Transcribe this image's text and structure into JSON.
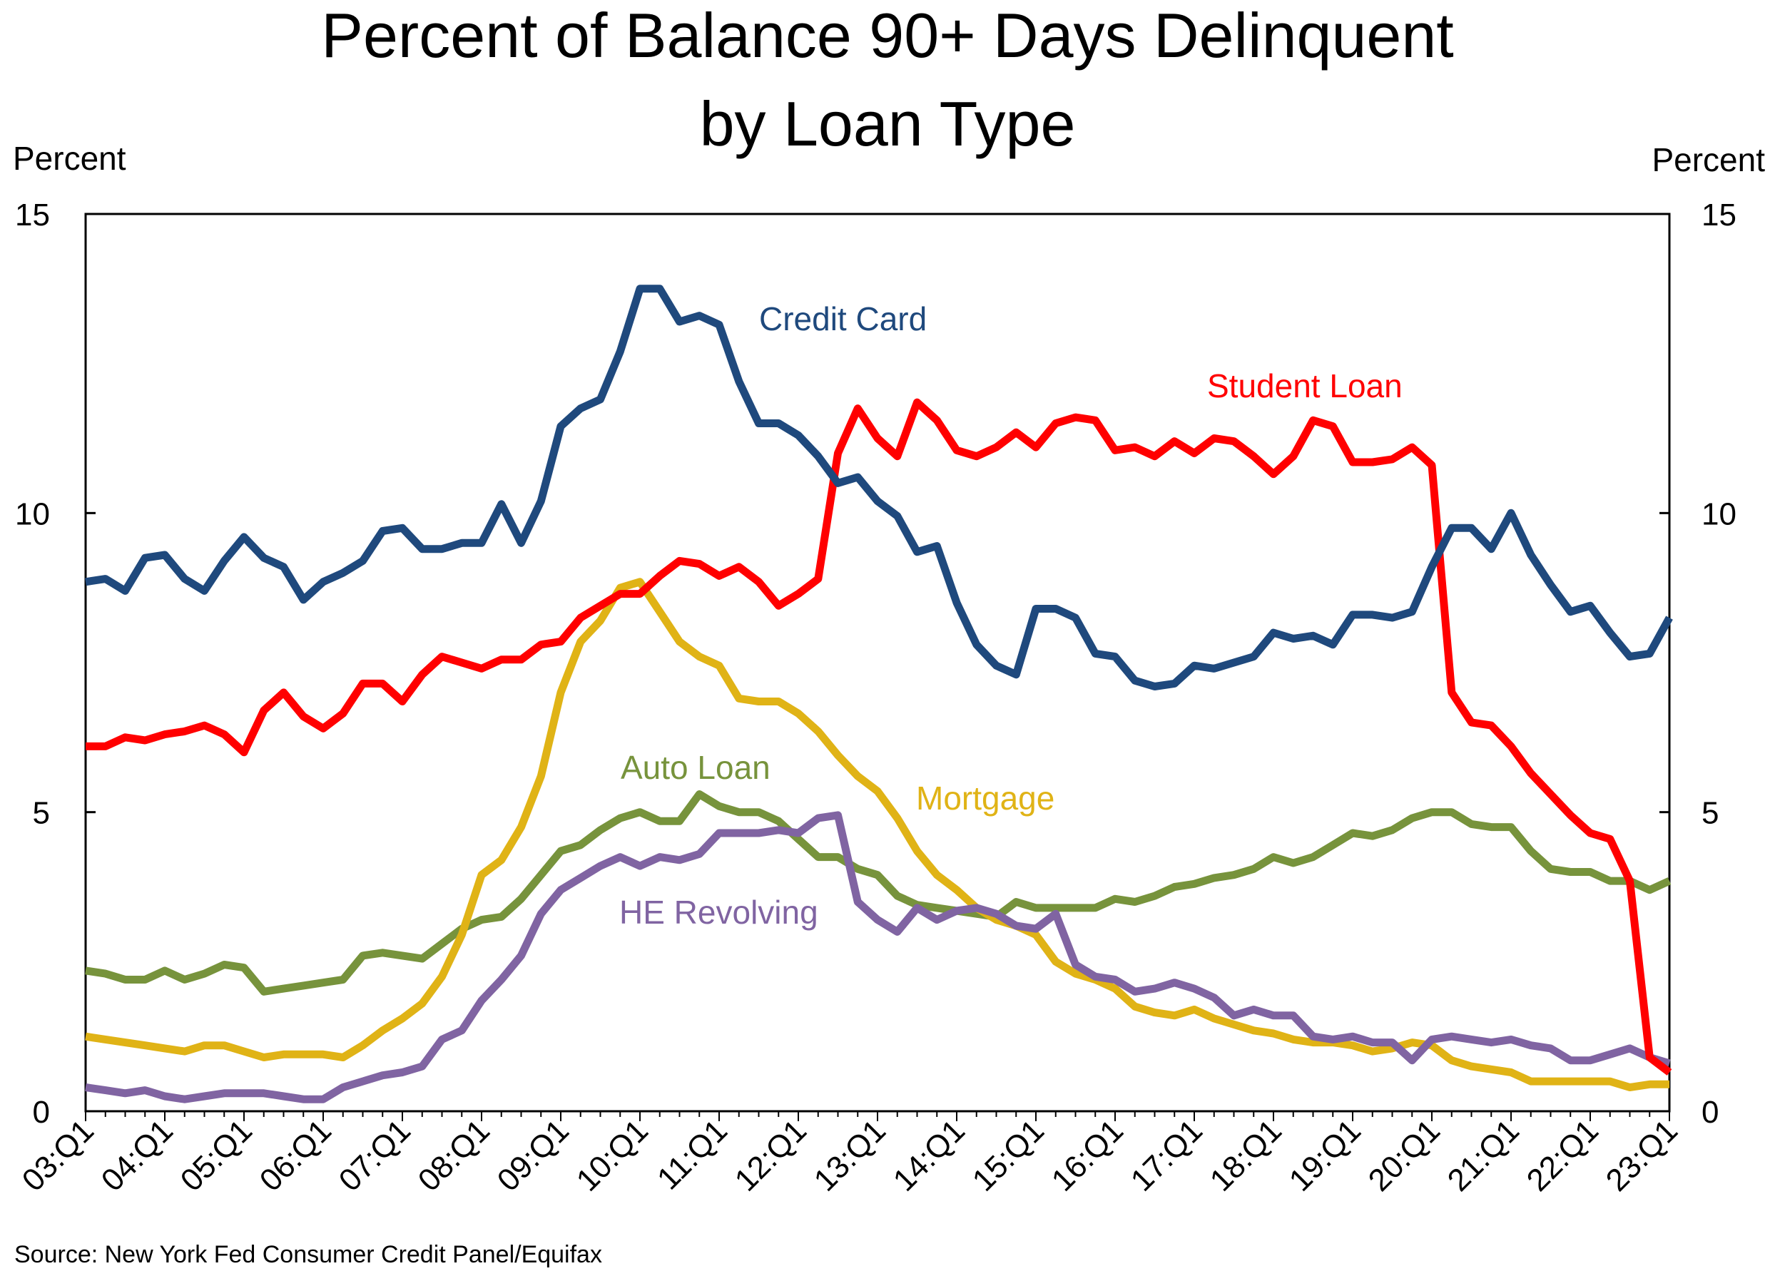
{
  "chart_data": {
    "type": "line",
    "title": [
      "Percent of Balance 90+ Days Delinquent",
      "by Loan Type"
    ],
    "ylabel_left": "Percent",
    "ylabel_right": "Percent",
    "ylim": [
      0,
      15
    ],
    "yticks": [
      "0",
      "5",
      "10",
      "15"
    ],
    "xticks": [
      "03:Q1",
      "04:Q1",
      "05:Q1",
      "06:Q1",
      "07:Q1",
      "08:Q1",
      "09:Q1",
      "10:Q1",
      "11:Q1",
      "12:Q1",
      "13:Q1",
      "14:Q1",
      "15:Q1",
      "16:Q1",
      "17:Q1",
      "18:Q1",
      "19:Q1",
      "20:Q1",
      "21:Q1",
      "22:Q1",
      "23:Q1"
    ],
    "grid": false,
    "source": "Source: New York Fed Consumer Credit Panel/Equifax",
    "series": [
      {
        "name": "Credit Card",
        "color": "#1f497d",
        "values": [
          8.85,
          8.9,
          8.7,
          9.25,
          9.3,
          8.9,
          8.7,
          9.2,
          9.6,
          9.25,
          9.1,
          8.55,
          8.85,
          9.0,
          9.2,
          9.7,
          9.75,
          9.4,
          9.4,
          9.5,
          9.5,
          10.15,
          9.5,
          10.2,
          11.45,
          11.75,
          11.9,
          12.7,
          13.75,
          13.75,
          13.2,
          13.3,
          13.15,
          12.2,
          11.5,
          11.5,
          11.3,
          10.95,
          10.5,
          10.6,
          10.2,
          9.95,
          9.35,
          9.45,
          8.5,
          7.8,
          7.45,
          7.3,
          8.4,
          8.4,
          8.25,
          7.65,
          7.6,
          7.2,
          7.1,
          7.15,
          7.45,
          7.4,
          7.5,
          7.6,
          8.0,
          7.9,
          7.95,
          7.8,
          8.3,
          8.3,
          8.25,
          8.35,
          9.1,
          9.75,
          9.75,
          9.4,
          10.0,
          9.3,
          8.8,
          8.35,
          8.45,
          8.0,
          7.6,
          7.65,
          8.25
        ]
      },
      {
        "name": "Student Loan",
        "color": "#ff0000",
        "values": [
          6.1,
          6.1,
          6.25,
          6.2,
          6.3,
          6.35,
          6.45,
          6.3,
          6.0,
          6.7,
          7.0,
          6.6,
          6.4,
          6.65,
          7.15,
          7.15,
          6.85,
          7.3,
          7.6,
          7.5,
          7.4,
          7.55,
          7.55,
          7.8,
          7.85,
          8.25,
          8.45,
          8.65,
          8.65,
          8.95,
          9.2,
          9.15,
          8.95,
          9.1,
          8.85,
          8.45,
          8.65,
          8.9,
          11.0,
          11.75,
          11.25,
          10.95,
          11.85,
          11.55,
          11.05,
          10.95,
          11.1,
          11.35,
          11.1,
          11.5,
          11.6,
          11.55,
          11.05,
          11.1,
          10.95,
          11.2,
          11.0,
          11.25,
          11.2,
          10.95,
          10.65,
          10.95,
          11.55,
          11.45,
          10.85,
          10.85,
          10.9,
          11.1,
          10.8,
          7.0,
          6.5,
          6.45,
          6.1,
          5.65,
          5.3,
          4.95,
          4.65,
          4.55,
          3.85,
          0.9,
          0.65
        ]
      },
      {
        "name": "Auto Loan",
        "color": "#77933c",
        "values": [
          2.35,
          2.3,
          2.2,
          2.2,
          2.35,
          2.2,
          2.3,
          2.45,
          2.4,
          2.0,
          2.05,
          2.1,
          2.15,
          2.2,
          2.6,
          2.65,
          2.6,
          2.55,
          2.8,
          3.05,
          3.2,
          3.25,
          3.55,
          3.95,
          4.35,
          4.45,
          4.7,
          4.9,
          5.0,
          4.85,
          4.85,
          5.3,
          5.1,
          5.0,
          5.0,
          4.85,
          4.55,
          4.25,
          4.25,
          4.05,
          3.95,
          3.6,
          3.45,
          3.4,
          3.35,
          3.3,
          3.25,
          3.5,
          3.4,
          3.4,
          3.4,
          3.4,
          3.55,
          3.5,
          3.6,
          3.75,
          3.8,
          3.9,
          3.95,
          4.05,
          4.25,
          4.15,
          4.25,
          4.45,
          4.65,
          4.6,
          4.7,
          4.9,
          5.0,
          5.0,
          4.8,
          4.75,
          4.75,
          4.35,
          4.05,
          4.0,
          4.0,
          3.85,
          3.85,
          3.7,
          3.85
        ]
      },
      {
        "name": "Mortgage",
        "color": "#e0b316",
        "values": [
          1.25,
          1.2,
          1.15,
          1.1,
          1.05,
          1.0,
          1.1,
          1.1,
          1.0,
          0.9,
          0.95,
          0.95,
          0.95,
          0.9,
          1.1,
          1.35,
          1.55,
          1.8,
          2.25,
          2.95,
          3.95,
          4.2,
          4.75,
          5.6,
          7.0,
          7.85,
          8.2,
          8.75,
          8.85,
          8.35,
          7.85,
          7.6,
          7.45,
          6.9,
          6.85,
          6.85,
          6.65,
          6.35,
          5.95,
          5.6,
          5.35,
          4.9,
          4.35,
          3.95,
          3.7,
          3.4,
          3.2,
          3.1,
          2.95,
          2.5,
          2.3,
          2.2,
          2.05,
          1.75,
          1.65,
          1.6,
          1.7,
          1.55,
          1.45,
          1.35,
          1.3,
          1.2,
          1.15,
          1.15,
          1.1,
          1.0,
          1.05,
          1.15,
          1.1,
          0.85,
          0.75,
          0.7,
          0.65,
          0.5,
          0.5,
          0.5,
          0.5,
          0.5,
          0.4,
          0.45,
          0.45
        ]
      },
      {
        "name": "HE Revolving",
        "color": "#8064a2",
        "values": [
          0.4,
          0.35,
          0.3,
          0.35,
          0.25,
          0.2,
          0.25,
          0.3,
          0.3,
          0.3,
          0.25,
          0.2,
          0.2,
          0.4,
          0.5,
          0.6,
          0.65,
          0.75,
          1.2,
          1.35,
          1.85,
          2.2,
          2.6,
          3.3,
          3.7,
          3.9,
          4.1,
          4.25,
          4.1,
          4.25,
          4.2,
          4.3,
          4.65,
          4.65,
          4.65,
          4.7,
          4.65,
          4.9,
          4.95,
          3.5,
          3.2,
          3.0,
          3.4,
          3.2,
          3.35,
          3.4,
          3.3,
          3.1,
          3.05,
          3.3,
          2.45,
          2.25,
          2.2,
          2.0,
          2.05,
          2.15,
          2.05,
          1.9,
          1.6,
          1.7,
          1.6,
          1.6,
          1.25,
          1.2,
          1.25,
          1.15,
          1.15,
          0.85,
          1.2,
          1.25,
          1.2,
          1.15,
          1.2,
          1.1,
          1.05,
          0.85,
          0.85,
          0.95,
          1.05,
          0.9,
          0.8
        ]
      }
    ],
    "annotations": {
      "credit_card": "Credit Card",
      "student_loan": "Student Loan",
      "auto_loan": "Auto Loan",
      "mortgage": "Mortgage",
      "he_revolving": "HE Revolving"
    }
  }
}
